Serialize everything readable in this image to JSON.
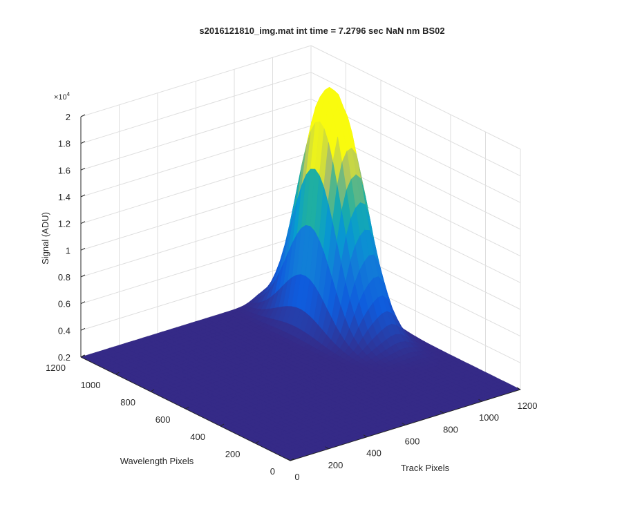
{
  "chart_data": {
    "type": "surface",
    "title": "s2016121810_img.mat int time = 7.2796 sec  NaN nm BS02",
    "xlabel": "Track Pixels",
    "ylabel": "Wavelength Pixels",
    "zlabel": "Signal (ADU)",
    "z_exponent_label": "×10",
    "z_exponent_power": "4",
    "xlim": [
      0,
      1200
    ],
    "ylim": [
      0,
      1200
    ],
    "zlim": [
      0.2,
      2
    ],
    "x_ticks": [
      "0",
      "200",
      "400",
      "600",
      "800",
      "1000",
      "1200"
    ],
    "y_ticks": [
      "0",
      "200",
      "400",
      "600",
      "800",
      "1000",
      "1200"
    ],
    "z_ticks": [
      "0.2",
      "0.4",
      "0.6",
      "0.8",
      "1",
      "1.2",
      "1.4",
      "1.6",
      "1.8",
      "2"
    ],
    "grid": true,
    "colormap": "parula",
    "baseline_z": 0.2,
    "peaks": [
      {
        "x_center": 960,
        "x_width": 55,
        "y_center": 880,
        "y_width": 130,
        "peak_z": 1.6
      },
      {
        "x_center": 1060,
        "x_width": 55,
        "y_center": 860,
        "y_width": 140,
        "peak_z": 1.5
      }
    ],
    "colors": {
      "low": "#352a87",
      "mid": "#21b1c5",
      "high": "#f7d03c",
      "axis": "#262626",
      "grid": "#dedede"
    }
  }
}
